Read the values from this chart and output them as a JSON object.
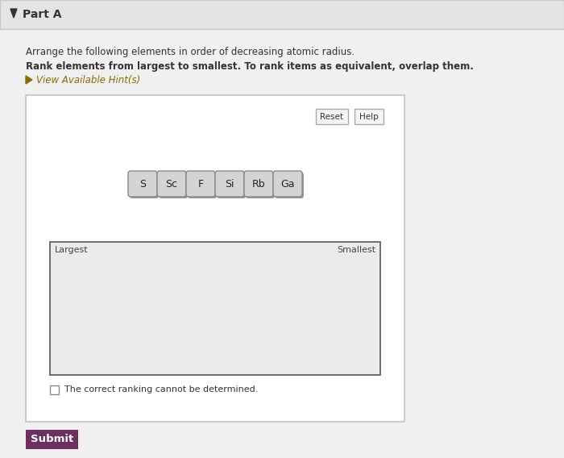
{
  "title_text": "Part A",
  "instruction1": "Arrange the following elements in order of decreasing atomic radius.",
  "instruction2": "Rank elements from largest to smallest. To rank items as equivalent, overlap them.",
  "hint_text": "View Available Hint(s)",
  "elements": [
    "S",
    "Sc",
    "F",
    "Si",
    "Rb",
    "Ga"
  ],
  "largest_label": "Largest",
  "smallest_label": "Smallest",
  "checkbox_text": "The correct ranking cannot be determined.",
  "submit_text": "Submit",
  "reset_text": "Reset",
  "help_text": "Help",
  "bg_color": "#f0f0f0",
  "white": "#ffffff",
  "header_bg": "#e4e4e4",
  "border_color": "#c8c8c8",
  "title_color": "#333333",
  "hint_color": "#8B6B00",
  "submit_bg": "#6b3060",
  "submit_text_color": "#ffffff",
  "ranking_box_bg": "#ebebeb",
  "ranking_box_border": "#555555",
  "panel_border": "#cccccc",
  "element_btn_bg": "#d4d4d4",
  "element_btn_border": "#888888",
  "element_shadow": "#999999",
  "reset_help_bg": "#f5f5f5",
  "reset_help_border": "#aaaaaa",
  "checkbox_border": "#888888"
}
